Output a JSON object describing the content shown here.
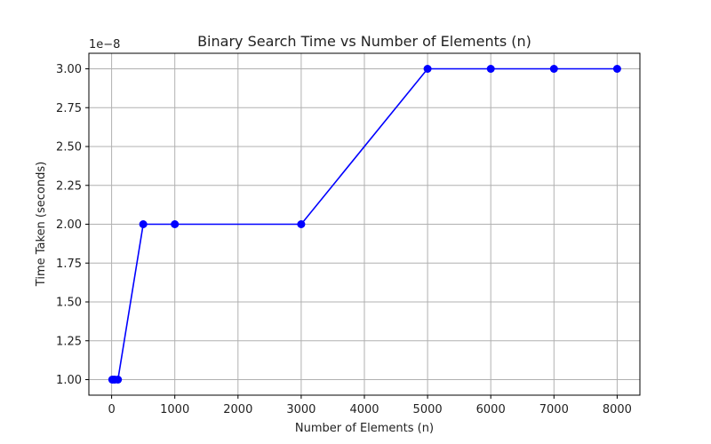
{
  "chart_data": {
    "type": "line",
    "title": "Binary Search Time vs Number of Elements (n)",
    "xlabel": "Number of Elements (n)",
    "ylabel": "Time Taken (seconds)",
    "y_offset_label": "1e−8",
    "y_scale_factor": 1e-08,
    "xlim": [
      -360,
      8360
    ],
    "ylim": [
      0.9,
      3.1
    ],
    "x_ticks": [
      0,
      1000,
      2000,
      3000,
      4000,
      5000,
      6000,
      7000,
      8000
    ],
    "x_tick_labels": [
      "0",
      "1000",
      "2000",
      "3000",
      "4000",
      "5000",
      "6000",
      "7000",
      "8000"
    ],
    "y_ticks": [
      1.0,
      1.25,
      1.5,
      1.75,
      2.0,
      2.25,
      2.5,
      2.75,
      3.0
    ],
    "y_tick_labels": [
      "1.00",
      "1.25",
      "1.50",
      "1.75",
      "2.00",
      "2.25",
      "2.50",
      "2.75",
      "3.00"
    ],
    "grid": true,
    "series": [
      {
        "color": "#0000ff",
        "marker": "circle",
        "x": [
          10,
          50,
          100,
          500,
          1000,
          3000,
          5000,
          6000,
          7000,
          8000
        ],
        "y": [
          1.0,
          1.0,
          1.0,
          2.0,
          2.0,
          2.0,
          3.0,
          3.0,
          3.0,
          3.0
        ]
      }
    ]
  }
}
